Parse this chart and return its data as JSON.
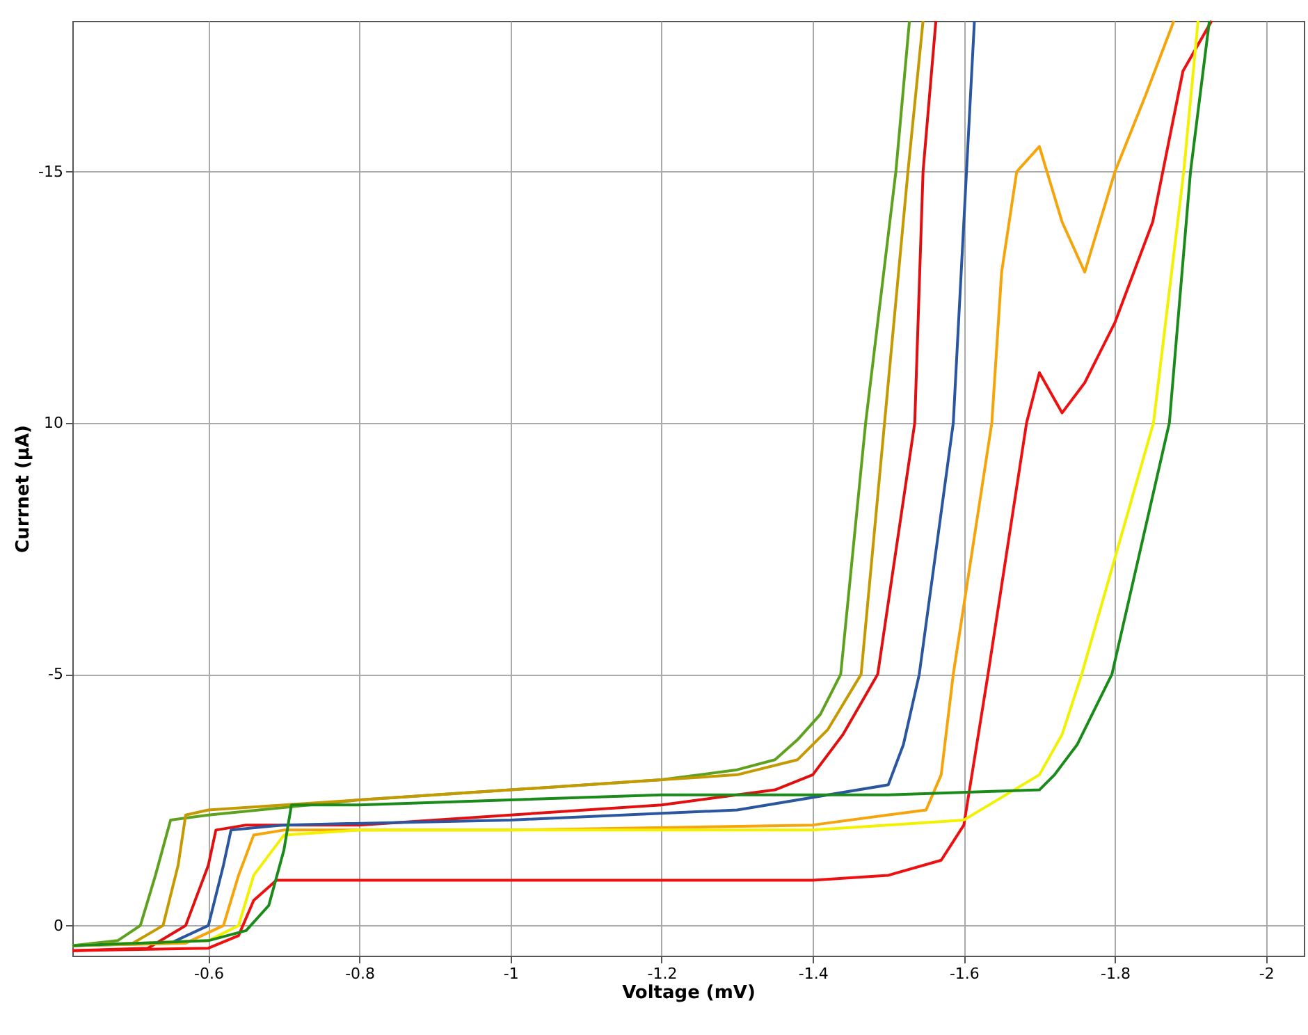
{
  "chart_data": {
    "type": "line",
    "xlabel": "Voltage (mV)",
    "ylabel": "Currnet (μA)",
    "xlim": [
      -0.42,
      -2.05
    ],
    "ylim": [
      0.6,
      -18
    ],
    "xticks": [
      -0.6,
      -0.8,
      -1,
      -1.2,
      -1.4,
      -1.6,
      -1.8,
      -2
    ],
    "yticks": [
      {
        "value": -15,
        "label": "-15"
      },
      {
        "value": -10,
        "label": "10"
      },
      {
        "value": -5,
        "label": "-5"
      },
      {
        "value": 0,
        "label": "0"
      }
    ],
    "grid": true,
    "line_style": "solid",
    "marker": "none",
    "series": [
      {
        "color": "#5ea11e",
        "x": [
          -0.42,
          -0.48,
          -0.51,
          -0.53,
          -0.55,
          -0.6,
          -0.8,
          -1.0,
          -1.2,
          -1.3,
          -1.35,
          -1.38,
          -1.41,
          -1.437,
          -1.47,
          -1.51,
          -1.528
        ],
        "values": [
          0.4,
          0.3,
          0,
          -1.0,
          -2.1,
          -2.2,
          -2.5,
          -2.7,
          -2.9,
          -3.1,
          -3.3,
          -3.7,
          -4.2,
          -5,
          -10,
          -15,
          -18
        ]
      },
      {
        "color": "#c59a00",
        "x": [
          -0.42,
          -0.5,
          -0.54,
          -0.56,
          -0.57,
          -0.6,
          -0.8,
          -1.0,
          -1.2,
          -1.3,
          -1.38,
          -1.42,
          -1.464,
          -1.495,
          -1.526,
          -1.546
        ],
        "values": [
          0.4,
          0.35,
          0,
          -1.2,
          -2.2,
          -2.3,
          -2.5,
          -2.7,
          -2.9,
          -3.0,
          -3.3,
          -3.9,
          -5,
          -10,
          -15,
          -18
        ]
      },
      {
        "color": "#e01010",
        "x": [
          -0.42,
          -0.52,
          -0.57,
          -0.6,
          -0.61,
          -0.65,
          -0.8,
          -1.0,
          -1.2,
          -1.35,
          -1.4,
          -1.44,
          -1.486,
          -1.535,
          -1.546,
          -1.563
        ],
        "values": [
          0.5,
          0.45,
          0,
          -1.2,
          -1.9,
          -2.0,
          -2.0,
          -2.2,
          -2.4,
          -2.7,
          -3.0,
          -3.8,
          -5,
          -10,
          -15,
          -18
        ]
      },
      {
        "color": "#2a56a0",
        "x": [
          -0.42,
          -0.55,
          -0.6,
          -0.62,
          -0.63,
          -0.7,
          -1.0,
          -1.3,
          -1.5,
          -1.52,
          -1.541,
          -1.586,
          -1.614
        ],
        "values": [
          0.4,
          0.35,
          0,
          -1.2,
          -1.9,
          -2.0,
          -2.1,
          -2.3,
          -2.8,
          -3.6,
          -5,
          -10,
          -18
        ]
      },
      {
        "color": "#f5a40a",
        "x": [
          -0.42,
          -0.57,
          -0.62,
          -0.64,
          -0.66,
          -0.7,
          -1.0,
          -1.4,
          -1.55,
          -1.57,
          -1.586,
          -1.637,
          -1.65,
          -1.67,
          -1.7,
          -1.73,
          -1.76,
          -1.8,
          -1.84,
          -1.878
        ],
        "values": [
          0.4,
          0.35,
          0,
          -1.0,
          -1.8,
          -1.9,
          -1.9,
          -2.0,
          -2.3,
          -3.0,
          -5,
          -10,
          -13,
          -15,
          -15.5,
          -14,
          -13,
          -15,
          -16.5,
          -18
        ]
      },
      {
        "color": "#ee1010",
        "x": [
          -0.42,
          -0.6,
          -0.64,
          -0.66,
          -0.69,
          -0.75,
          -1.0,
          -1.4,
          -1.5,
          -1.57,
          -1.6,
          -1.632,
          -1.683,
          -1.7,
          -1.73,
          -1.76,
          -1.8,
          -1.85,
          -1.89,
          -1.928
        ],
        "values": [
          0.5,
          0.45,
          0.2,
          -0.5,
          -0.9,
          -0.9,
          -0.9,
          -0.9,
          -1.0,
          -1.3,
          -2.0,
          -5,
          -10,
          -11,
          -10.2,
          -10.8,
          -12,
          -14,
          -17,
          -18
        ]
      },
      {
        "color": "#f2f200",
        "x": [
          -0.42,
          -0.6,
          -0.64,
          -0.66,
          -0.7,
          -0.8,
          -1.0,
          -1.4,
          -1.5,
          -1.6,
          -1.7,
          -1.73,
          -1.756,
          -1.851,
          -1.891,
          -1.91
        ],
        "values": [
          0.4,
          0.3,
          0,
          -1.0,
          -1.8,
          -1.9,
          -1.9,
          -1.9,
          -2.0,
          -2.1,
          -3.0,
          -3.8,
          -5,
          -10,
          -15,
          -18
        ]
      },
      {
        "color": "#1a8a1a",
        "x": [
          -0.42,
          -0.6,
          -0.65,
          -0.68,
          -0.7,
          -0.71,
          -0.8,
          -1.0,
          -1.2,
          -1.5,
          -1.7,
          -1.72,
          -1.75,
          -1.796,
          -1.872,
          -1.9,
          -1.925
        ],
        "values": [
          0.4,
          0.3,
          0.1,
          -0.4,
          -1.5,
          -2.4,
          -2.4,
          -2.5,
          -2.6,
          -2.6,
          -2.7,
          -3.0,
          -3.6,
          -5,
          -10,
          -15,
          -18
        ]
      }
    ]
  }
}
